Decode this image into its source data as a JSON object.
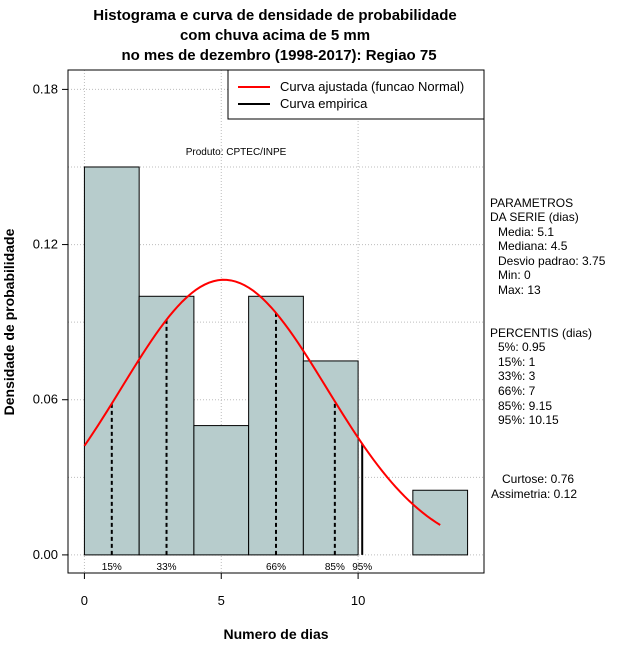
{
  "chart_data": {
    "type": "bar",
    "title_lines": [
      "Histograma e curva de densidade de probabilidade",
      "com chuva acima de 5 mm",
      "no mes de dezembro (1998-2017): Regiao 75"
    ],
    "xlabel": "Numero de dias",
    "ylabel": "Densidade de probabilidade",
    "xlim": [
      -0.6,
      14.6
    ],
    "ylim": [
      -0.007,
      0.1875
    ],
    "x_ticks": [
      0,
      5,
      10
    ],
    "y_ticks": [
      0.0,
      0.06,
      0.12,
      0.18
    ],
    "y_tick_labels": [
      "0.00",
      "0.06",
      "0.12",
      "0.18"
    ],
    "grid": true,
    "legend_position": "top-right",
    "histogram": {
      "bins": [
        [
          0,
          2
        ],
        [
          2,
          4
        ],
        [
          4,
          6
        ],
        [
          6,
          8
        ],
        [
          8,
          10
        ],
        [
          10,
          12
        ],
        [
          12,
          14
        ]
      ],
      "values": [
        0.15,
        0.1,
        0.05,
        0.1,
        0.075,
        0.0,
        0.025
      ],
      "fill": "#b7cccc"
    },
    "series": [
      {
        "name": "Curva ajustada (funcao Normal)",
        "type": "line",
        "distribution": "normal",
        "mean": 5.1,
        "sd": 3.75,
        "x_range": [
          0,
          13
        ],
        "color": "#ff0000"
      },
      {
        "name": "Curva empirica",
        "type": "legend-only",
        "color": "#000000"
      }
    ],
    "percentile_lines": [
      {
        "label": "15%",
        "x": 1,
        "solid": false
      },
      {
        "label": "33%",
        "x": 3,
        "solid": false
      },
      {
        "label": "66%",
        "x": 7,
        "solid": false
      },
      {
        "label": "85%",
        "x": 9.15,
        "solid": false
      },
      {
        "label": "95%",
        "x": 10.15,
        "solid": true
      }
    ],
    "annotations": {
      "credit": "Produto: CPTEC/INPE",
      "params_header": [
        "PARAMETROS",
        "DA SERIE (dias)"
      ],
      "params": [
        "Media: 5.1",
        "Mediana: 4.5",
        "Desvio padrao: 3.75",
        "Min: 0",
        "Max: 13"
      ],
      "percentis_header": "PERCENTIS (dias)",
      "percentis": [
        "5%: 0.95",
        "15%: 1",
        "33%: 3",
        "66%: 7",
        "85%: 9.15",
        "95%: 10.15"
      ],
      "stats": [
        "Curtose: 0.76",
        "Assimetria: 0.12"
      ]
    }
  }
}
